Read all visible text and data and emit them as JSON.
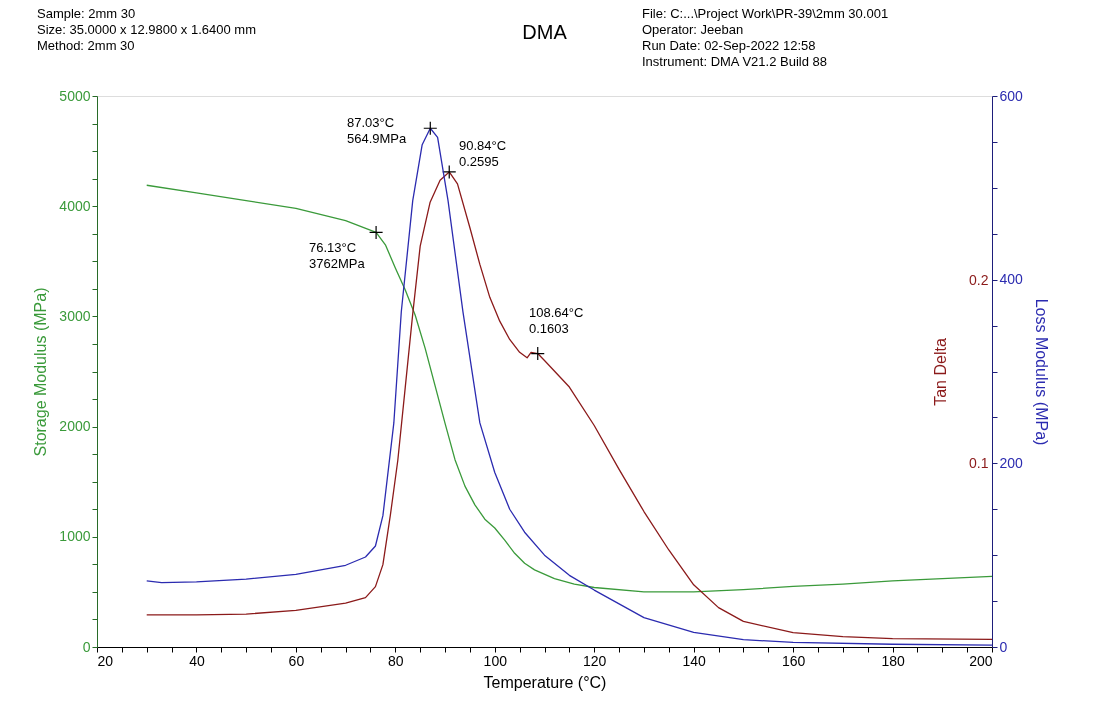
{
  "chart_data": {
    "type": "line",
    "title": "DMA",
    "xlabel": "Temperature (°C)",
    "ylabel": "Storage Modulus (MPa)",
    "y2label": "Tan Delta",
    "y3label": "Loss Modulus (MPa)",
    "xlim": [
      20,
      200
    ],
    "xticks": [
      20,
      {
        "value": 25,
        "label": null
      },
      {
        "value": 30,
        "label": null
      },
      {
        "value": 35,
        "label": null
      },
      40,
      {
        "value": 45,
        "label": null
      },
      {
        "value": 50,
        "label": null
      },
      {
        "value": 55,
        "label": null
      },
      60,
      {
        "value": 65,
        "label": null
      },
      {
        "value": 70,
        "label": null
      },
      {
        "value": 75,
        "label": null
      },
      80,
      {
        "value": 85,
        "label": null
      },
      {
        "value": 90,
        "label": null
      },
      {
        "value": 95,
        "label": null
      },
      100,
      {
        "value": 105,
        "label": null
      },
      {
        "value": 110,
        "label": null
      },
      {
        "value": 115,
        "label": null
      },
      120,
      {
        "value": 125,
        "label": null
      },
      {
        "value": 130,
        "label": null
      },
      {
        "value": 135,
        "label": null
      },
      140,
      {
        "value": 145,
        "label": null
      },
      {
        "value": 150,
        "label": null
      },
      {
        "value": 155,
        "label": null
      },
      160,
      {
        "value": 165,
        "label": null
      },
      {
        "value": 170,
        "label": null
      },
      {
        "value": 175,
        "label": null
      },
      180,
      {
        "value": 185,
        "label": null
      },
      {
        "value": 190,
        "label": null
      },
      {
        "value": 195,
        "label": null
      },
      200
    ],
    "ylim": [
      0,
      5000
    ],
    "yticks": [
      0,
      {
        "value": 250,
        "label": null
      },
      {
        "value": 500,
        "label": null
      },
      {
        "value": 750,
        "label": null
      },
      1000,
      {
        "value": 1250,
        "label": null
      },
      {
        "value": 1500,
        "label": null
      },
      {
        "value": 1750,
        "label": null
      },
      2000,
      {
        "value": 2250,
        "label": null
      },
      {
        "value": 2500,
        "label": null
      },
      {
        "value": 2750,
        "label": null
      },
      3000,
      {
        "value": 3250,
        "label": null
      },
      {
        "value": 3500,
        "label": null
      },
      {
        "value": 3750,
        "label": null
      },
      4000,
      {
        "value": 4250,
        "label": null
      },
      {
        "value": 4500,
        "label": null
      },
      {
        "value": 4750,
        "label": null
      },
      5000
    ],
    "y2lim": [
      0,
      0.301
    ],
    "y2ticks": [
      0.1,
      0.2
    ],
    "y3lim": [
      0,
      600
    ],
    "y3ticks": [
      0,
      {
        "value": 50,
        "label": null
      },
      {
        "value": 100,
        "label": null
      },
      {
        "value": 150,
        "label": null
      },
      200,
      {
        "value": 250,
        "label": null
      },
      {
        "value": 300,
        "label": null
      },
      {
        "value": 350,
        "label": null
      },
      400,
      {
        "value": 450,
        "label": null
      },
      {
        "value": 500,
        "label": null
      },
      {
        "value": 550,
        "label": null
      },
      600
    ],
    "grid": false,
    "marker": "none",
    "line_style": "solid",
    "series": [
      {
        "color": "#3a9a3a",
        "axis": "y",
        "x": [
          30,
          40,
          50,
          60,
          70,
          76.13,
          78,
          80,
          82,
          84,
          86,
          88,
          90,
          92,
          94,
          96,
          98,
          100,
          102,
          104,
          106,
          108,
          112,
          116,
          120,
          130,
          140,
          150,
          160,
          170,
          180,
          190,
          200
        ],
        "values": [
          4190,
          4120,
          4050,
          3980,
          3870,
          3762,
          3650,
          3440,
          3240,
          3010,
          2710,
          2370,
          2030,
          1700,
          1460,
          1290,
          1160,
          1080,
          970,
          850,
          760,
          700,
          620,
          570,
          540,
          500,
          500,
          520,
          550,
          570,
          600,
          620,
          640
        ]
      },
      {
        "color": "#8b1a1a",
        "axis": "y2",
        "x": [
          30,
          40,
          50,
          60,
          70,
          74,
          76,
          77.5,
          79,
          80.5,
          82,
          83.5,
          85,
          87,
          89,
          90.84,
          92.5,
          95,
          97,
          99,
          101,
          103,
          105,
          106.5,
          107.3,
          108.64,
          110,
          115,
          120,
          125,
          130,
          135,
          140,
          145,
          150,
          160,
          170,
          180,
          200
        ],
        "values": [
          0.0175,
          0.0175,
          0.018,
          0.02,
          0.024,
          0.027,
          0.033,
          0.045,
          0.072,
          0.102,
          0.142,
          0.182,
          0.219,
          0.243,
          0.255,
          0.2595,
          0.253,
          0.229,
          0.209,
          0.191,
          0.178,
          0.168,
          0.161,
          0.158,
          0.161,
          0.1603,
          0.1565,
          0.142,
          0.121,
          0.097,
          0.074,
          0.053,
          0.034,
          0.0215,
          0.014,
          0.0078,
          0.0057,
          0.0046,
          0.0042
        ]
      },
      {
        "color": "#2b2bb0",
        "axis": "y3",
        "x": [
          30,
          33,
          40,
          50,
          60,
          70,
          74,
          76,
          77.5,
          79.7,
          81.2,
          83.5,
          85.4,
          87.03,
          88.5,
          90.6,
          93.6,
          97,
          100,
          103,
          106,
          110,
          115,
          120,
          130,
          140,
          150,
          160,
          180,
          200
        ],
        "values": [
          72,
          70,
          71,
          74,
          79,
          89,
          98,
          110,
          143,
          244,
          365,
          486,
          547,
          564.9,
          555,
          486,
          365,
          244,
          190,
          150,
          125,
          100,
          78,
          62,
          32,
          16,
          8,
          5,
          3,
          2
        ]
      },
      {
        "type": "scatter",
        "marker": "cross",
        "color": "#000000",
        "axis": "y",
        "x": [
          76.13
        ],
        "values": [
          3762
        ]
      },
      {
        "type": "scatter",
        "marker": "cross",
        "color": "#000000",
        "axis": "y3",
        "x": [
          87.03
        ],
        "values": [
          564.9
        ]
      },
      {
        "type": "scatter",
        "marker": "cross",
        "color": "#000000",
        "axis": "y2",
        "x": [
          90.84,
          108.64
        ],
        "values": [
          0.2595,
          0.1603
        ]
      }
    ],
    "annotations": [
      "Sample: 2mm 30\nSize:  35.0000 x 12.9800 x 1.6400 mm\nMethod: 2mm 30",
      "File: C:...\\Project Work\\PR-39\\2mm 30.001\nOperator: Jeeban\nRun Date: 02-Sep-2022 12:58\nInstrument: DMA V21.2 Build 88",
      "76.13°C\n3762MPa",
      "87.03°C\n564.9MPa",
      "90.84°C\n0.2595",
      "108.64°C\n0.1603"
    ]
  }
}
